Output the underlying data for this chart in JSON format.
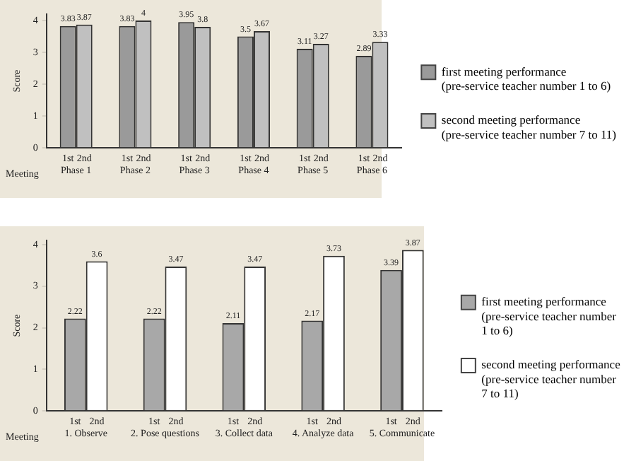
{
  "chart_data": [
    {
      "type": "bar",
      "categories": [
        "Phase 1",
        "Phase 2",
        "Phase 3",
        "Phase 4",
        "Phase 5",
        "Phase 6"
      ],
      "xlabel": "Meeting",
      "ylabel": "Score",
      "ylim": [
        0,
        4.2
      ],
      "yticks": [
        0,
        1,
        2,
        3,
        4
      ],
      "grid": false,
      "legend": "right",
      "data_labels": true,
      "series": [
        {
          "name": "first meeting performance (pre-service teacher number 1 to 6)",
          "color": "#9a9a9a",
          "values": [
            3.83,
            3.83,
            3.95,
            3.5,
            3.11,
            2.89
          ]
        },
        {
          "name": "second meeting performance (pre-service teacher number 7 to 11)",
          "color": "#c0c0c0",
          "values": [
            3.87,
            4,
            3.8,
            3.67,
            3.27,
            3.33
          ]
        }
      ],
      "annotations": [
        "1st",
        "2nd",
        "1st",
        "2nd",
        "1st",
        "2nd",
        "1st",
        "2nd",
        "1st",
        "2nd",
        "1st",
        "2nd"
      ]
    },
    {
      "type": "bar",
      "categories": [
        "1. Observe",
        "2. Pose questions",
        "3. Collect data",
        "4. Analyze data",
        "5. Communicate"
      ],
      "xlabel": "Meeting",
      "ylabel": "Score",
      "ylim": [
        0,
        4.1
      ],
      "yticks": [
        0,
        1,
        2,
        3,
        4
      ],
      "grid": false,
      "legend": "right",
      "data_labels": true,
      "series": [
        {
          "name": "first meeting performance (pre-service teacher number 1 to 6)",
          "color": "#a8a8a8",
          "values": [
            2.22,
            2.22,
            2.11,
            2.17,
            3.39
          ]
        },
        {
          "name": "second meeting performance (pre-service teacher number 7 to 11)",
          "color": "#ffffff",
          "values": [
            3.6,
            3.47,
            3.47,
            3.73,
            3.87
          ]
        }
      ],
      "annotations": [
        "1st",
        "2nd",
        "1st",
        "2nd",
        "1st",
        "2nd",
        "1st",
        "2nd",
        "1st",
        "2nd"
      ]
    }
  ]
}
